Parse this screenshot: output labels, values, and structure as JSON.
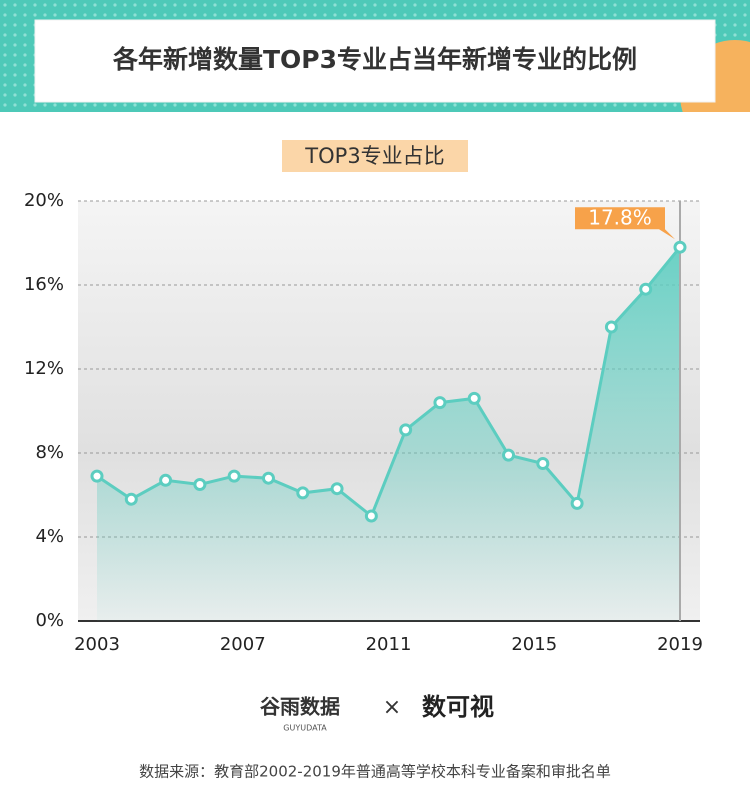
{
  "chart_data": {
    "type": "line",
    "title": "各年新增数量TOP3专业占当年新增专业的比例",
    "subtitle": "TOP3专业占比",
    "x_labels": [
      "2003",
      "2007",
      "2011",
      "2015",
      "2019"
    ],
    "series": [
      {
        "name": "TOP3专业占比",
        "color": "#5ccdc0",
        "values": [
          6.9,
          5.8,
          6.7,
          6.5,
          6.9,
          6.8,
          6.1,
          6.3,
          5.0,
          9.1,
          10.4,
          10.6,
          7.9,
          7.5,
          5.6,
          14.0,
          15.8,
          17.8
        ],
        "value_labels": [
          null,
          null,
          null,
          null,
          null,
          null,
          null,
          null,
          null,
          null,
          null,
          null,
          null,
          null,
          null,
          null,
          null,
          "17.8%"
        ]
      }
    ],
    "ylim": [
      0,
      20
    ],
    "yticks": [
      {
        "value": 0,
        "label": "0%"
      },
      {
        "value": 4,
        "label": "4%"
      },
      {
        "value": 8,
        "label": "8%"
      },
      {
        "value": 12,
        "label": "12%"
      },
      {
        "value": 16,
        "label": "16%"
      },
      {
        "value": 20,
        "label": "20%"
      }
    ],
    "grid": true,
    "logos": [
      "谷雨数据",
      "GUYUDATA",
      "×",
      "数可视"
    ],
    "source": "数据来源：教育部2002-2019年普通高等学校本科专业备案和审批名单"
  }
}
